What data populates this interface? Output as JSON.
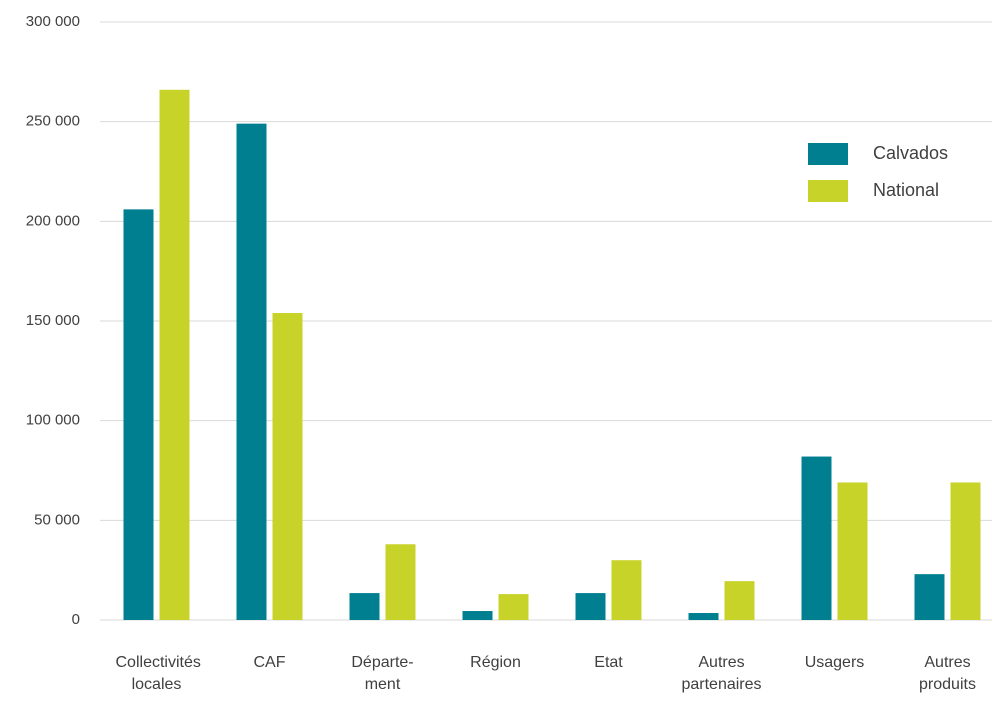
{
  "chart_data": {
    "type": "bar",
    "categories": [
      "Collectivités locales",
      "CAF",
      "Départe-ment",
      "Région",
      "Etat",
      "Autres partenaires",
      "Usagers",
      "Autres produits"
    ],
    "series": [
      {
        "name": "Calvados",
        "color": "#007f91",
        "values": [
          206000,
          249000,
          13500,
          4500,
          13500,
          3500,
          82000,
          23000
        ]
      },
      {
        "name": "National",
        "color": "#c8d32a",
        "values": [
          266000,
          154000,
          38000,
          13000,
          30000,
          19500,
          69000,
          69000
        ]
      }
    ],
    "ylim": [
      0,
      300000
    ],
    "yticks": [
      0,
      {
        "value": 50000,
        "label": "50 000"
      },
      {
        "value": 100000,
        "label": "100 000"
      },
      {
        "value": 150000,
        "label": "150 000"
      },
      {
        "value": 200000,
        "label": "200 000"
      },
      {
        "value": 250000,
        "label": "250 000"
      },
      {
        "value": 300000,
        "label": "300 000"
      }
    ],
    "grid": true,
    "legend": "upper right"
  }
}
